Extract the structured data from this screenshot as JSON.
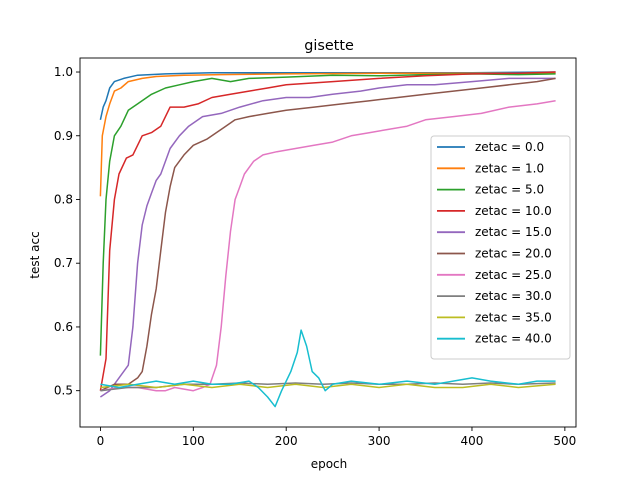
{
  "chart_data": {
    "type": "line",
    "title": "gisette",
    "xlabel": "epoch",
    "ylabel": "test acc",
    "xlim": [
      -22,
      512
    ],
    "ylim": [
      0.443,
      1.022
    ],
    "x_ticks": [
      "0",
      "100",
      "200",
      "300",
      "400",
      "500"
    ],
    "y_ticks": [
      "0.5",
      "0.6",
      "0.7",
      "0.8",
      "0.9",
      "1.0"
    ],
    "legend_position": "center-right",
    "grid": false,
    "series": [
      {
        "name": "zetac = 0.0",
        "color": "#1f77b4",
        "points": [
          [
            0,
            0.925
          ],
          [
            3,
            0.945
          ],
          [
            6,
            0.955
          ],
          [
            10,
            0.975
          ],
          [
            15,
            0.985
          ],
          [
            25,
            0.99
          ],
          [
            40,
            0.995
          ],
          [
            70,
            0.997
          ],
          [
            120,
            0.999
          ],
          [
            200,
            0.999
          ],
          [
            300,
            0.999
          ],
          [
            400,
            0.999
          ],
          [
            490,
            1.0
          ]
        ]
      },
      {
        "name": "zetac = 1.0",
        "color": "#ff7f0e",
        "points": [
          [
            0,
            0.805
          ],
          [
            2,
            0.9
          ],
          [
            6,
            0.93
          ],
          [
            10,
            0.95
          ],
          [
            15,
            0.97
          ],
          [
            22,
            0.975
          ],
          [
            30,
            0.985
          ],
          [
            45,
            0.99
          ],
          [
            60,
            0.993
          ],
          [
            90,
            0.995
          ],
          [
            130,
            0.996
          ],
          [
            200,
            0.997
          ],
          [
            300,
            0.998
          ],
          [
            400,
            0.998
          ],
          [
            490,
            0.998
          ]
        ]
      },
      {
        "name": "zetac = 5.0",
        "color": "#2ca02c",
        "points": [
          [
            0,
            0.555
          ],
          [
            3,
            0.7
          ],
          [
            6,
            0.8
          ],
          [
            10,
            0.86
          ],
          [
            15,
            0.9
          ],
          [
            22,
            0.915
          ],
          [
            30,
            0.94
          ],
          [
            40,
            0.95
          ],
          [
            55,
            0.965
          ],
          [
            70,
            0.975
          ],
          [
            85,
            0.98
          ],
          [
            100,
            0.985
          ],
          [
            120,
            0.99
          ],
          [
            140,
            0.985
          ],
          [
            160,
            0.99
          ],
          [
            200,
            0.992
          ],
          [
            250,
            0.995
          ],
          [
            300,
            0.994
          ],
          [
            350,
            0.996
          ],
          [
            400,
            0.997
          ],
          [
            450,
            0.996
          ],
          [
            490,
            0.997
          ]
        ]
      },
      {
        "name": "zetac = 10.0",
        "color": "#d62728",
        "points": [
          [
            0,
            0.5
          ],
          [
            6,
            0.55
          ],
          [
            10,
            0.72
          ],
          [
            15,
            0.8
          ],
          [
            20,
            0.84
          ],
          [
            28,
            0.865
          ],
          [
            35,
            0.87
          ],
          [
            45,
            0.9
          ],
          [
            55,
            0.905
          ],
          [
            65,
            0.915
          ],
          [
            75,
            0.945
          ],
          [
            90,
            0.945
          ],
          [
            105,
            0.95
          ],
          [
            120,
            0.96
          ],
          [
            140,
            0.965
          ],
          [
            160,
            0.97
          ],
          [
            180,
            0.975
          ],
          [
            200,
            0.98
          ],
          [
            250,
            0.985
          ],
          [
            300,
            0.99
          ],
          [
            350,
            0.994
          ],
          [
            400,
            0.997
          ],
          [
            450,
            0.998
          ],
          [
            490,
            1.0
          ]
        ]
      },
      {
        "name": "zetac = 15.0",
        "color": "#9467bd",
        "points": [
          [
            0,
            0.49
          ],
          [
            10,
            0.5
          ],
          [
            20,
            0.52
          ],
          [
            30,
            0.54
          ],
          [
            35,
            0.6
          ],
          [
            40,
            0.7
          ],
          [
            45,
            0.76
          ],
          [
            50,
            0.79
          ],
          [
            55,
            0.81
          ],
          [
            60,
            0.83
          ],
          [
            65,
            0.84
          ],
          [
            75,
            0.88
          ],
          [
            85,
            0.9
          ],
          [
            95,
            0.915
          ],
          [
            110,
            0.93
          ],
          [
            130,
            0.935
          ],
          [
            150,
            0.945
          ],
          [
            175,
            0.955
          ],
          [
            200,
            0.96
          ],
          [
            225,
            0.96
          ],
          [
            250,
            0.965
          ],
          [
            280,
            0.97
          ],
          [
            300,
            0.975
          ],
          [
            330,
            0.98
          ],
          [
            360,
            0.98
          ],
          [
            400,
            0.985
          ],
          [
            440,
            0.99
          ],
          [
            490,
            0.99
          ]
        ]
      },
      {
        "name": "zetac = 20.0",
        "color": "#8c564b",
        "points": [
          [
            0,
            0.5
          ],
          [
            15,
            0.51
          ],
          [
            30,
            0.51
          ],
          [
            40,
            0.52
          ],
          [
            45,
            0.53
          ],
          [
            50,
            0.57
          ],
          [
            55,
            0.62
          ],
          [
            60,
            0.66
          ],
          [
            65,
            0.72
          ],
          [
            70,
            0.78
          ],
          [
            75,
            0.82
          ],
          [
            80,
            0.85
          ],
          [
            90,
            0.87
          ],
          [
            100,
            0.885
          ],
          [
            115,
            0.895
          ],
          [
            130,
            0.91
          ],
          [
            145,
            0.925
          ],
          [
            160,
            0.93
          ],
          [
            180,
            0.935
          ],
          [
            200,
            0.94
          ],
          [
            230,
            0.945
          ],
          [
            260,
            0.95
          ],
          [
            290,
            0.955
          ],
          [
            320,
            0.96
          ],
          [
            350,
            0.965
          ],
          [
            380,
            0.97
          ],
          [
            410,
            0.975
          ],
          [
            440,
            0.98
          ],
          [
            470,
            0.985
          ],
          [
            490,
            0.99
          ]
        ]
      },
      {
        "name": "zetac = 25.0",
        "color": "#e377c2",
        "points": [
          [
            0,
            0.5
          ],
          [
            20,
            0.505
          ],
          [
            40,
            0.505
          ],
          [
            60,
            0.5
          ],
          [
            70,
            0.5
          ],
          [
            80,
            0.505
          ],
          [
            100,
            0.5
          ],
          [
            110,
            0.505
          ],
          [
            118,
            0.51
          ],
          [
            125,
            0.54
          ],
          [
            130,
            0.6
          ],
          [
            135,
            0.68
          ],
          [
            140,
            0.75
          ],
          [
            145,
            0.8
          ],
          [
            150,
            0.82
          ],
          [
            155,
            0.84
          ],
          [
            165,
            0.86
          ],
          [
            175,
            0.87
          ],
          [
            190,
            0.875
          ],
          [
            210,
            0.88
          ],
          [
            230,
            0.885
          ],
          [
            250,
            0.89
          ],
          [
            270,
            0.9
          ],
          [
            290,
            0.905
          ],
          [
            310,
            0.91
          ],
          [
            330,
            0.915
          ],
          [
            350,
            0.925
          ],
          [
            380,
            0.93
          ],
          [
            410,
            0.935
          ],
          [
            440,
            0.945
          ],
          [
            470,
            0.95
          ],
          [
            490,
            0.955
          ]
        ]
      },
      {
        "name": "zetac = 30.0",
        "color": "#7f7f7f",
        "points": [
          [
            0,
            0.5
          ],
          [
            30,
            0.505
          ],
          [
            60,
            0.505
          ],
          [
            90,
            0.51
          ],
          [
            120,
            0.51
          ],
          [
            150,
            0.512
          ],
          [
            180,
            0.51
          ],
          [
            210,
            0.512
          ],
          [
            240,
            0.51
          ],
          [
            270,
            0.512
          ],
          [
            300,
            0.51
          ],
          [
            330,
            0.51
          ],
          [
            360,
            0.512
          ],
          [
            390,
            0.51
          ],
          [
            420,
            0.512
          ],
          [
            450,
            0.51
          ],
          [
            490,
            0.512
          ]
        ]
      },
      {
        "name": "zetac = 35.0",
        "color": "#bcbd22",
        "points": [
          [
            0,
            0.505
          ],
          [
            30,
            0.51
          ],
          [
            60,
            0.505
          ],
          [
            90,
            0.51
          ],
          [
            120,
            0.505
          ],
          [
            150,
            0.51
          ],
          [
            180,
            0.505
          ],
          [
            210,
            0.51
          ],
          [
            240,
            0.505
          ],
          [
            270,
            0.51
          ],
          [
            300,
            0.505
          ],
          [
            330,
            0.51
          ],
          [
            360,
            0.505
          ],
          [
            390,
            0.505
          ],
          [
            420,
            0.51
          ],
          [
            450,
            0.505
          ],
          [
            490,
            0.51
          ]
        ]
      },
      {
        "name": "zetac = 40.0",
        "color": "#17becf",
        "points": [
          [
            0,
            0.51
          ],
          [
            20,
            0.505
          ],
          [
            40,
            0.51
          ],
          [
            60,
            0.515
          ],
          [
            80,
            0.51
          ],
          [
            100,
            0.515
          ],
          [
            120,
            0.51
          ],
          [
            140,
            0.51
          ],
          [
            160,
            0.515
          ],
          [
            170,
            0.505
          ],
          [
            180,
            0.49
          ],
          [
            188,
            0.475
          ],
          [
            195,
            0.5
          ],
          [
            205,
            0.53
          ],
          [
            212,
            0.56
          ],
          [
            216,
            0.595
          ],
          [
            222,
            0.57
          ],
          [
            228,
            0.53
          ],
          [
            235,
            0.52
          ],
          [
            242,
            0.5
          ],
          [
            250,
            0.51
          ],
          [
            270,
            0.515
          ],
          [
            300,
            0.51
          ],
          [
            330,
            0.515
          ],
          [
            360,
            0.51
          ],
          [
            400,
            0.52
          ],
          [
            420,
            0.515
          ],
          [
            450,
            0.51
          ],
          [
            470,
            0.515
          ],
          [
            490,
            0.515
          ]
        ]
      }
    ]
  }
}
